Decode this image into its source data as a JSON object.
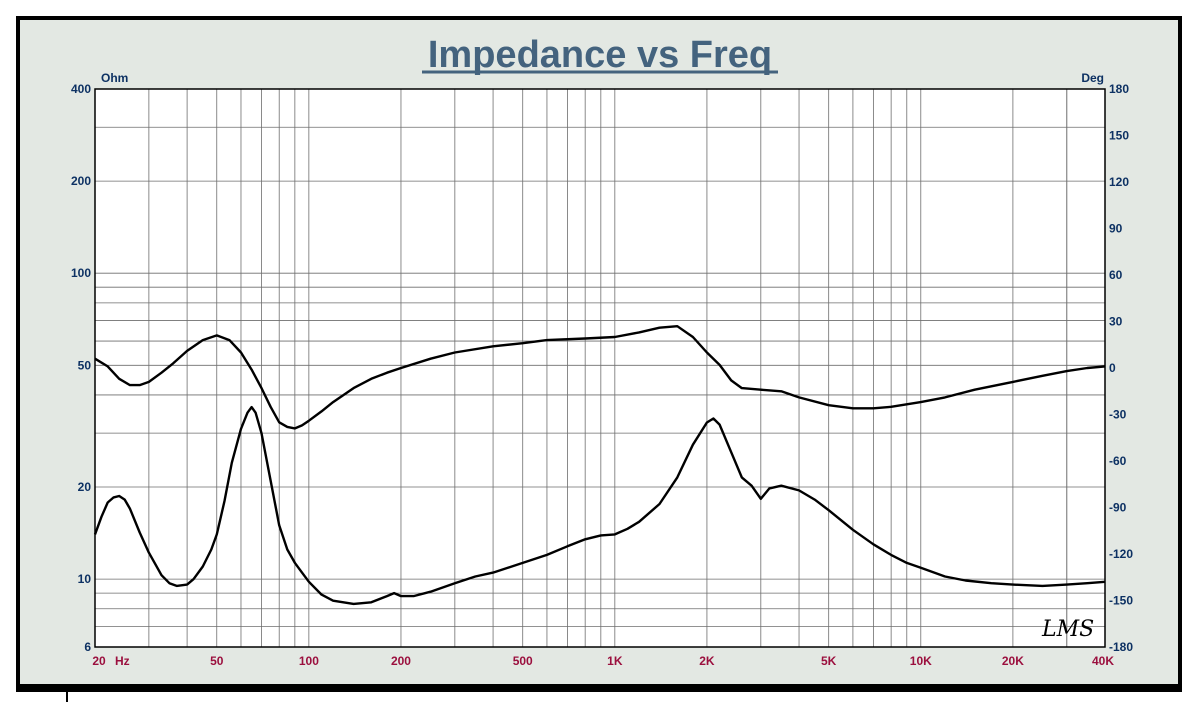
{
  "chart_data": {
    "type": "line",
    "title": "Impedance vs Freq",
    "y_left_label": "Ohm",
    "y_right_label": "Deg",
    "x_scale": "log",
    "y_left_scale": "log",
    "xlim": [
      20,
      40000
    ],
    "ylim_left": [
      6,
      400
    ],
    "ylim_right": [
      -180,
      180
    ],
    "x_ticks": [
      {
        "value": 20,
        "label": "20"
      },
      {
        "value": 50,
        "label": "50"
      },
      {
        "value": 100,
        "label": "100"
      },
      {
        "value": 200,
        "label": "200"
      },
      {
        "value": 500,
        "label": "500"
      },
      {
        "value": 1000,
        "label": "1K"
      },
      {
        "value": 2000,
        "label": "2K"
      },
      {
        "value": 5000,
        "label": "5K"
      },
      {
        "value": 10000,
        "label": "10K"
      },
      {
        "value": 20000,
        "label": "20K"
      },
      {
        "value": 40000,
        "label": "40K"
      }
    ],
    "x_unit_label": "Hz",
    "y_left_ticks": [
      6,
      10,
      20,
      50,
      100,
      200,
      400
    ],
    "y_right_ticks": [
      180,
      150,
      120,
      90,
      60,
      30,
      0,
      -30,
      -60,
      -90,
      -120,
      -150,
      -180
    ],
    "grid": true,
    "series": [
      {
        "axis": "left",
        "color": "#000000",
        "points": [
          [
            20,
            14
          ],
          [
            21,
            16
          ],
          [
            22,
            17.8
          ],
          [
            23,
            18.5
          ],
          [
            24,
            18.7
          ],
          [
            25,
            18.2
          ],
          [
            26,
            17
          ],
          [
            28,
            14.2
          ],
          [
            30,
            12.2
          ],
          [
            33,
            10.3
          ],
          [
            35,
            9.7
          ],
          [
            37,
            9.5
          ],
          [
            40,
            9.6
          ],
          [
            42,
            10
          ],
          [
            45,
            11
          ],
          [
            48,
            12.5
          ],
          [
            50,
            14
          ],
          [
            53,
            18
          ],
          [
            56,
            24
          ],
          [
            60,
            31
          ],
          [
            63,
            35
          ],
          [
            65,
            36.5
          ],
          [
            67,
            35
          ],
          [
            70,
            30
          ],
          [
            75,
            21
          ],
          [
            80,
            15
          ],
          [
            85,
            12.5
          ],
          [
            90,
            11.3
          ],
          [
            95,
            10.5
          ],
          [
            100,
            9.8
          ],
          [
            110,
            8.9
          ],
          [
            120,
            8.5
          ],
          [
            140,
            8.3
          ],
          [
            160,
            8.4
          ],
          [
            180,
            8.8
          ],
          [
            190,
            9.0
          ],
          [
            200,
            8.8
          ],
          [
            220,
            8.8
          ],
          [
            250,
            9.1
          ],
          [
            300,
            9.7
          ],
          [
            350,
            10.2
          ],
          [
            400,
            10.5
          ],
          [
            500,
            11.3
          ],
          [
            600,
            12.0
          ],
          [
            700,
            12.8
          ],
          [
            800,
            13.5
          ],
          [
            900,
            13.9
          ],
          [
            1000,
            14.0
          ],
          [
            1100,
            14.6
          ],
          [
            1200,
            15.4
          ],
          [
            1400,
            17.6
          ],
          [
            1600,
            21.5
          ],
          [
            1800,
            27.5
          ],
          [
            2000,
            32.5
          ],
          [
            2100,
            33.5
          ],
          [
            2200,
            32
          ],
          [
            2400,
            26
          ],
          [
            2600,
            21.5
          ],
          [
            2800,
            20.2
          ],
          [
            3000,
            18.3
          ],
          [
            3200,
            19.8
          ],
          [
            3500,
            20.2
          ],
          [
            4000,
            19.5
          ],
          [
            4500,
            18.2
          ],
          [
            5000,
            16.8
          ],
          [
            6000,
            14.5
          ],
          [
            7000,
            13.0
          ],
          [
            8000,
            12.0
          ],
          [
            9000,
            11.3
          ],
          [
            10000,
            10.9
          ],
          [
            12000,
            10.2
          ],
          [
            14000,
            9.9
          ],
          [
            17000,
            9.7
          ],
          [
            20000,
            9.6
          ],
          [
            25000,
            9.5
          ],
          [
            30000,
            9.6
          ],
          [
            35000,
            9.7
          ],
          [
            40000,
            9.8
          ]
        ]
      },
      {
        "axis": "right",
        "color": "#000000",
        "points": [
          [
            20,
            6
          ],
          [
            22,
            1
          ],
          [
            24,
            -7
          ],
          [
            26,
            -11
          ],
          [
            28,
            -11
          ],
          [
            30,
            -9
          ],
          [
            33,
            -3
          ],
          [
            36,
            3
          ],
          [
            40,
            11
          ],
          [
            45,
            18
          ],
          [
            50,
            21
          ],
          [
            55,
            18
          ],
          [
            60,
            10
          ],
          [
            65,
            -1
          ],
          [
            70,
            -13
          ],
          [
            75,
            -25
          ],
          [
            80,
            -35
          ],
          [
            85,
            -38
          ],
          [
            90,
            -39
          ],
          [
            95,
            -37
          ],
          [
            100,
            -34
          ],
          [
            110,
            -28
          ],
          [
            120,
            -22
          ],
          [
            140,
            -13
          ],
          [
            160,
            -7
          ],
          [
            180,
            -3
          ],
          [
            200,
            0
          ],
          [
            250,
            6
          ],
          [
            300,
            10
          ],
          [
            400,
            14
          ],
          [
            500,
            16
          ],
          [
            600,
            18
          ],
          [
            800,
            19
          ],
          [
            1000,
            20
          ],
          [
            1200,
            23
          ],
          [
            1400,
            26
          ],
          [
            1600,
            27
          ],
          [
            1800,
            20
          ],
          [
            2000,
            10
          ],
          [
            2200,
            2
          ],
          [
            2400,
            -8
          ],
          [
            2600,
            -13
          ],
          [
            3000,
            -14
          ],
          [
            3500,
            -15
          ],
          [
            4000,
            -19
          ],
          [
            5000,
            -24
          ],
          [
            6000,
            -26
          ],
          [
            7000,
            -26
          ],
          [
            8000,
            -25
          ],
          [
            10000,
            -22
          ],
          [
            12000,
            -19
          ],
          [
            15000,
            -14
          ],
          [
            20000,
            -9
          ],
          [
            25000,
            -5
          ],
          [
            30000,
            -2
          ],
          [
            35000,
            0
          ],
          [
            40000,
            1
          ]
        ]
      }
    ],
    "annotation": "LMS"
  }
}
